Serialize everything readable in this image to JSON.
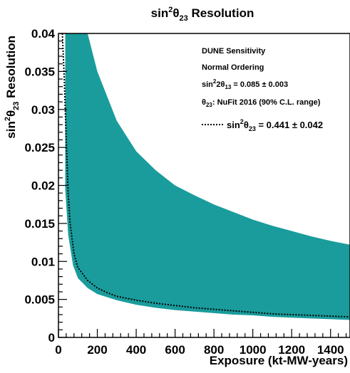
{
  "chart_data": {
    "type": "area",
    "title": {
      "base": "sin",
      "sup": "2",
      "theta": "θ",
      "sub": "23",
      "rest": " Resolution"
    },
    "xlabel": "Exposure (kt-MW-years)",
    "ylabel": {
      "base": "sin",
      "sup": "2",
      "theta": "θ",
      "sub": "23",
      "rest": " Resolution"
    },
    "xlim": [
      0,
      1500
    ],
    "ylim": [
      0,
      0.04
    ],
    "x_ticks": [
      0,
      200,
      400,
      600,
      800,
      1000,
      1200,
      1400
    ],
    "x_tick_labels": [
      "0",
      "200",
      "400",
      "600",
      "800",
      "1000",
      "1200",
      "1400"
    ],
    "y_ticks": [
      0,
      0.005,
      0.01,
      0.015,
      0.02,
      0.025,
      0.03,
      0.035,
      0.04
    ],
    "y_tick_labels": [
      "0",
      "0.005",
      "0.01",
      "0.015",
      "0.02",
      "0.025",
      "0.03",
      "0.035",
      "0.04"
    ],
    "grid": false,
    "band": {
      "color": "#1a9c9c",
      "x": [
        35,
        50,
        75,
        100,
        150,
        200,
        300,
        400,
        500,
        600,
        700,
        800,
        900,
        1000,
        1100,
        1200,
        1300,
        1400,
        1500
      ],
      "upper": [
        0.04,
        0.04,
        0.04,
        0.04,
        0.04,
        0.035,
        0.0285,
        0.0245,
        0.022,
        0.02,
        0.0187,
        0.0175,
        0.0165,
        0.0155,
        0.0147,
        0.014,
        0.0133,
        0.0127,
        0.0122
      ],
      "lower": [
        0.0195,
        0.0135,
        0.0095,
        0.0078,
        0.0065,
        0.0057,
        0.0049,
        0.0043,
        0.0039,
        0.0036,
        0.0034,
        0.0032,
        0.003,
        0.0029,
        0.0027,
        0.0026,
        0.0025,
        0.0024,
        0.0023
      ]
    },
    "curve": {
      "style": "dotted",
      "color": "#000000",
      "x": [
        20,
        30,
        40,
        50,
        60,
        80,
        100,
        150,
        200,
        250,
        300,
        400,
        500,
        600,
        700,
        800,
        900,
        1000,
        1100,
        1200,
        1300,
        1400,
        1500
      ],
      "y": [
        0.04,
        0.034,
        0.026,
        0.019,
        0.015,
        0.011,
        0.0092,
        0.0075,
        0.0065,
        0.0059,
        0.0054,
        0.0049,
        0.0045,
        0.0042,
        0.0039,
        0.0037,
        0.0035,
        0.0033,
        0.0031,
        0.003,
        0.0029,
        0.0028,
        0.0027
      ]
    },
    "legend": {
      "placement": "top-right",
      "lines": [
        {
          "text": "DUNE Sensitivity"
        },
        {
          "text": "Normal Ordering"
        },
        {
          "pre": "sin",
          "sup": "2",
          "mid": "2θ",
          "sub": "13",
          "post": " = 0.085 ± 0.003"
        },
        {
          "pre": "θ",
          "sub": "23",
          "post": ": NuFit 2016 (90% C.L. range)"
        }
      ],
      "curve_entry": {
        "pre": "sin",
        "sup": "2",
        "mid": "θ",
        "sub": "23",
        "post": " = 0.441 ± 0.042"
      }
    }
  }
}
